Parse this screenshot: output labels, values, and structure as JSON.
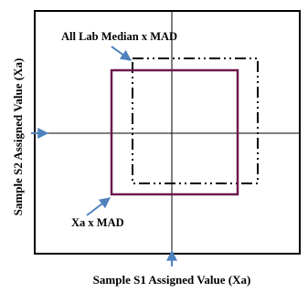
{
  "diagram": {
    "labels": {
      "all_lab": "All Lab Median x MAD",
      "xa_mad": "Xa x MAD",
      "x_axis": "Sample S1 Assigned Value (Xa)",
      "y_axis": "Sample S2 Assigned Value (Xa)"
    },
    "colors": {
      "frame": "#000000",
      "axes": "#000000",
      "dashed_square": "#000000",
      "inner_square": "#6b1a4b",
      "arrow": "#4f81bd"
    }
  }
}
